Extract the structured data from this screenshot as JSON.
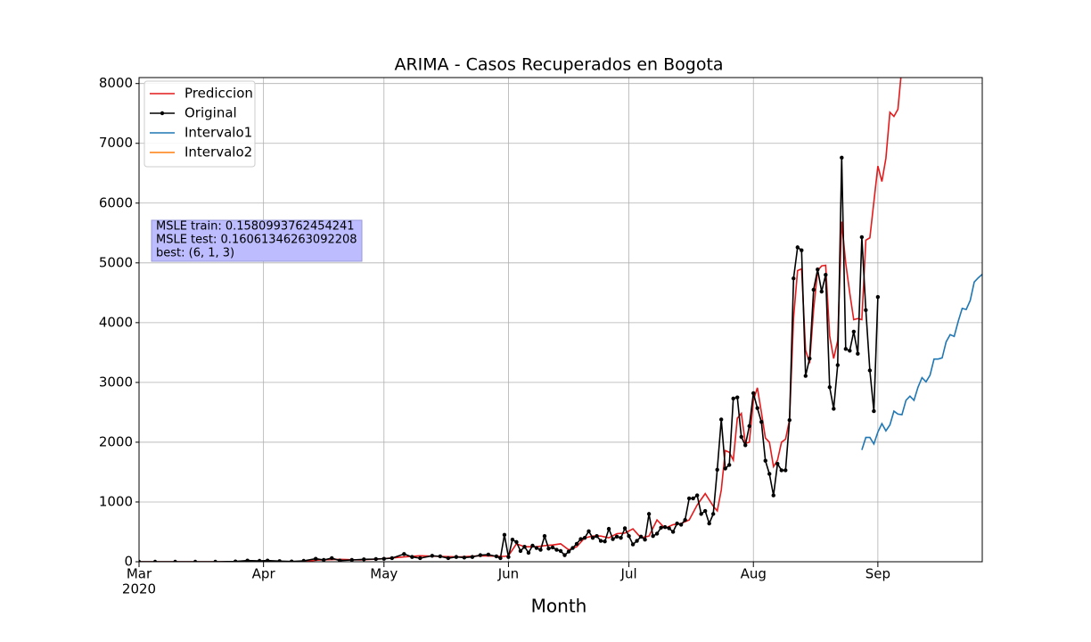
{
  "chart_data": {
    "type": "line",
    "title": "ARIMA - Casos Recuperados en Bogota",
    "x_label": "Month",
    "x_year_label": "2020",
    "xlim": [
      "2020-03-01",
      "2020-09-27"
    ],
    "xticks": [
      {
        "value": "2020-03",
        "label": "Mar"
      },
      {
        "value": "2020-04",
        "label": "Apr"
      },
      {
        "value": "2020-05",
        "label": "May"
      },
      {
        "value": "2020-06",
        "label": "Jun"
      },
      {
        "value": "2020-07",
        "label": "Jul"
      },
      {
        "value": "2020-08",
        "label": "Aug"
      },
      {
        "value": "2020-09",
        "label": "Sep"
      }
    ],
    "ylim": [
      0,
      8100
    ],
    "yticks": [
      0,
      1000,
      2000,
      3000,
      4000,
      5000,
      6000,
      7000,
      8000
    ],
    "grid": true,
    "legend": "upper left",
    "annotation": [
      "MSLE train: 0.1580993762454241",
      "MSLE test: 0.16061346263092208",
      "best: (6, 1, 3)"
    ],
    "series": [
      {
        "name": "Prediccion",
        "color": "#e41a1c",
        "markers": false,
        "x": [
          "2020-03-01",
          "2020-04-10",
          "2020-04-15",
          "2020-04-20",
          "2020-04-25",
          "2020-05-01",
          "2020-05-06",
          "2020-05-10",
          "2020-05-15",
          "2020-05-20",
          "2020-05-25",
          "2020-05-31",
          "2020-06-01",
          "2020-06-03",
          "2020-06-05",
          "2020-06-08",
          "2020-06-10",
          "2020-06-12",
          "2020-06-14",
          "2020-06-16",
          "2020-06-18",
          "2020-06-20",
          "2020-06-22",
          "2020-06-24",
          "2020-06-26",
          "2020-06-28",
          "2020-06-30",
          "2020-07-02",
          "2020-07-04",
          "2020-07-06",
          "2020-07-08",
          "2020-07-10",
          "2020-07-12",
          "2020-07-14",
          "2020-07-16",
          "2020-07-18",
          "2020-07-20",
          "2020-07-22",
          "2020-07-23",
          "2020-07-24",
          "2020-07-25",
          "2020-07-26",
          "2020-07-27",
          "2020-07-28",
          "2020-07-29",
          "2020-07-30",
          "2020-07-31",
          "2020-08-01",
          "2020-08-02",
          "2020-08-03",
          "2020-08-04",
          "2020-08-05",
          "2020-08-06",
          "2020-08-07",
          "2020-08-08",
          "2020-08-09",
          "2020-08-10",
          "2020-08-11",
          "2020-08-12",
          "2020-08-13",
          "2020-08-14",
          "2020-08-15",
          "2020-08-16",
          "2020-08-17",
          "2020-08-18",
          "2020-08-19",
          "2020-08-20",
          "2020-08-21",
          "2020-08-22",
          "2020-08-23",
          "2020-08-24",
          "2020-08-25",
          "2020-08-26",
          "2020-08-27",
          "2020-08-28",
          "2020-08-29",
          "2020-08-30",
          "2020-09-01",
          "2020-09-02",
          "2020-09-03",
          "2020-09-04",
          "2020-09-05",
          "2020-09-06",
          "2020-09-07"
        ],
        "values": [
          0,
          0,
          30,
          40,
          30,
          50,
          80,
          100,
          90,
          80,
          100,
          90,
          100,
          300,
          250,
          250,
          270,
          280,
          300,
          200,
          250,
          400,
          430,
          430,
          400,
          470,
          480,
          550,
          400,
          430,
          700,
          560,
          620,
          640,
          700,
          950,
          1140,
          930,
          850,
          1200,
          1860,
          1830,
          1700,
          2400,
          2480,
          1980,
          2000,
          2700,
          2910,
          2500,
          2070,
          2000,
          1590,
          1700,
          2000,
          2050,
          2380,
          4080,
          4870,
          4900,
          3540,
          3320,
          4220,
          4870,
          4950,
          4960,
          3780,
          3400,
          3700,
          5690,
          5000,
          4500,
          4050,
          4070,
          4050,
          5380,
          5420,
          6620,
          6360,
          6750,
          7520,
          7450,
          7570,
          8300
        ]
      },
      {
        "name": "Original",
        "color": "#000000",
        "markers": true,
        "x": [
          "2020-03-01",
          "2020-03-05",
          "2020-03-10",
          "2020-03-15",
          "2020-03-20",
          "2020-03-25",
          "2020-03-28",
          "2020-03-31",
          "2020-04-02",
          "2020-04-05",
          "2020-04-08",
          "2020-04-11",
          "2020-04-14",
          "2020-04-16",
          "2020-04-18",
          "2020-04-20",
          "2020-04-23",
          "2020-04-26",
          "2020-04-29",
          "2020-05-01",
          "2020-05-03",
          "2020-05-06",
          "2020-05-08",
          "2020-05-10",
          "2020-05-13",
          "2020-05-15",
          "2020-05-17",
          "2020-05-19",
          "2020-05-21",
          "2020-05-23",
          "2020-05-25",
          "2020-05-27",
          "2020-05-29",
          "2020-05-30",
          "2020-05-31",
          "2020-06-01",
          "2020-06-02",
          "2020-06-03",
          "2020-06-04",
          "2020-06-05",
          "2020-06-06",
          "2020-06-07",
          "2020-06-08",
          "2020-06-09",
          "2020-06-10",
          "2020-06-11",
          "2020-06-12",
          "2020-06-13",
          "2020-06-14",
          "2020-06-15",
          "2020-06-16",
          "2020-06-17",
          "2020-06-18",
          "2020-06-19",
          "2020-06-20",
          "2020-06-21",
          "2020-06-22",
          "2020-06-23",
          "2020-06-24",
          "2020-06-25",
          "2020-06-26",
          "2020-06-27",
          "2020-06-28",
          "2020-06-29",
          "2020-06-30",
          "2020-07-01",
          "2020-07-02",
          "2020-07-03",
          "2020-07-04",
          "2020-07-05",
          "2020-07-06",
          "2020-07-07",
          "2020-07-08",
          "2020-07-09",
          "2020-07-10",
          "2020-07-11",
          "2020-07-12",
          "2020-07-13",
          "2020-07-14",
          "2020-07-15",
          "2020-07-16",
          "2020-07-17",
          "2020-07-18",
          "2020-07-19",
          "2020-07-20",
          "2020-07-21",
          "2020-07-22",
          "2020-07-23",
          "2020-07-24",
          "2020-07-25",
          "2020-07-26",
          "2020-07-27",
          "2020-07-28",
          "2020-07-29",
          "2020-07-30",
          "2020-07-31",
          "2020-08-01",
          "2020-08-02",
          "2020-08-03",
          "2020-08-04",
          "2020-08-05",
          "2020-08-06",
          "2020-08-07",
          "2020-08-08",
          "2020-08-09",
          "2020-08-10",
          "2020-08-11",
          "2020-08-12",
          "2020-08-13",
          "2020-08-14",
          "2020-08-15",
          "2020-08-16",
          "2020-08-17",
          "2020-08-18",
          "2020-08-19",
          "2020-08-20",
          "2020-08-21",
          "2020-08-22",
          "2020-08-23",
          "2020-08-24",
          "2020-08-25",
          "2020-08-26",
          "2020-08-27",
          "2020-08-28",
          "2020-08-29",
          "2020-08-30",
          "2020-08-31",
          "2020-09-01"
        ],
        "values": [
          0,
          0,
          0,
          0,
          0,
          5,
          20,
          15,
          20,
          10,
          5,
          15,
          50,
          30,
          60,
          20,
          30,
          40,
          45,
          50,
          60,
          130,
          80,
          60,
          100,
          90,
          60,
          80,
          70,
          80,
          110,
          120,
          90,
          60,
          450,
          80,
          370,
          330,
          180,
          250,
          150,
          270,
          230,
          200,
          430,
          220,
          240,
          200,
          180,
          110,
          170,
          230,
          300,
          380,
          400,
          510,
          400,
          430,
          350,
          340,
          550,
          380,
          420,
          400,
          560,
          430,
          290,
          350,
          420,
          370,
          800,
          430,
          470,
          570,
          580,
          560,
          500,
          640,
          620,
          700,
          1060,
          1060,
          1110,
          800,
          850,
          640,
          800,
          1540,
          2380,
          1560,
          1620,
          2730,
          2750,
          2090,
          1950,
          2270,
          2820,
          2570,
          2340,
          1690,
          1470,
          1110,
          1640,
          1530,
          1530,
          2370,
          4740,
          5260,
          5210,
          3110,
          3400,
          4550,
          4890,
          4520,
          4800,
          2920,
          2560,
          3290,
          6760,
          3560,
          3530,
          3850,
          3480,
          5430,
          4210,
          3200,
          2520,
          4430
        ]
      },
      {
        "name": "Intervalo1",
        "color": "#1f77b4",
        "markers": false,
        "x": [
          "2020-08-28",
          "2020-08-29",
          "2020-08-30",
          "2020-08-31",
          "2020-09-01",
          "2020-09-02",
          "2020-09-03",
          "2020-09-04",
          "2020-09-05",
          "2020-09-06",
          "2020-09-07",
          "2020-09-08",
          "2020-09-09",
          "2020-09-10",
          "2020-09-11",
          "2020-09-12",
          "2020-09-13",
          "2020-09-14",
          "2020-09-15",
          "2020-09-16",
          "2020-09-17",
          "2020-09-18",
          "2020-09-19",
          "2020-09-20",
          "2020-09-21",
          "2020-09-22",
          "2020-09-23",
          "2020-09-24",
          "2020-09-25",
          "2020-09-26",
          "2020-09-27"
        ],
        "values": [
          1870,
          2080,
          2080,
          1970,
          2170,
          2310,
          2190,
          2290,
          2520,
          2470,
          2460,
          2700,
          2770,
          2700,
          2920,
          3080,
          3010,
          3120,
          3390,
          3390,
          3410,
          3680,
          3800,
          3770,
          4020,
          4240,
          4220,
          4370,
          4680,
          4750,
          4810
        ]
      },
      {
        "name": "Intervalo2",
        "color": "#ff7f0e",
        "markers": false,
        "x": [],
        "values": []
      }
    ]
  }
}
